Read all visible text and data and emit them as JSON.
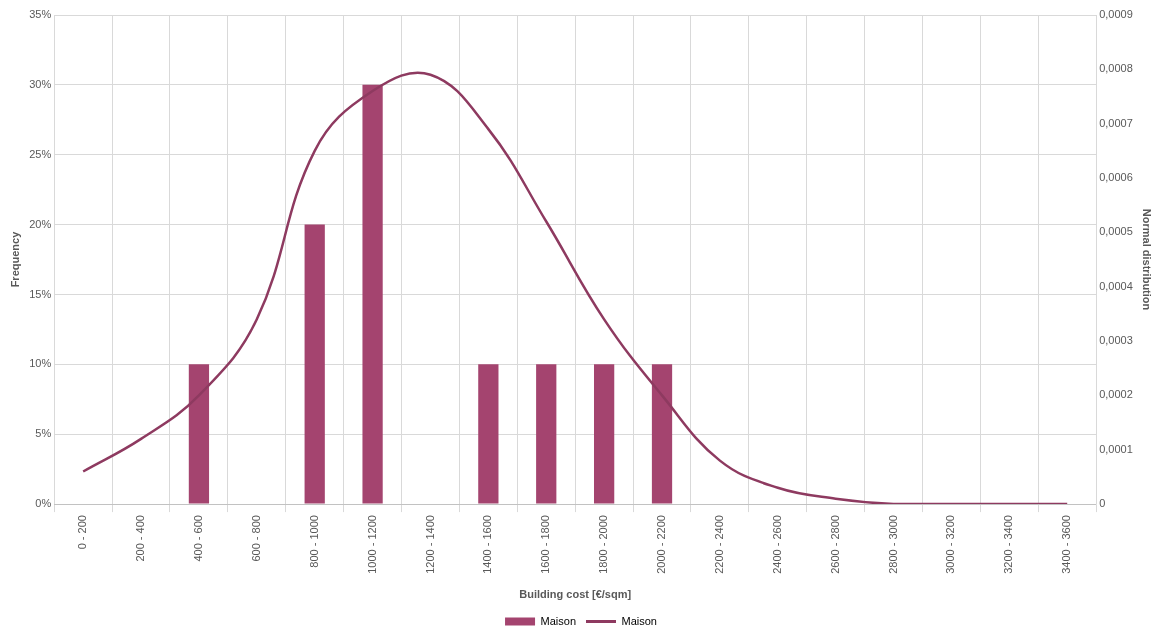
{
  "chart_data": {
    "type": "bar",
    "xlabel": "Building cost [€/sqm]",
    "ylabel": "Frequency",
    "y2label": "Normal distribution",
    "categories": [
      "0 - 200",
      "200 - 400",
      "400 - 600",
      "600 - 800",
      "800 - 1000",
      "1000 - 1200",
      "1200 - 1400",
      "1400 - 1600",
      "1600 - 1800",
      "1800 - 2000",
      "2000 - 2200",
      "2200 - 2400",
      "2400 - 2600",
      "2600 - 2800",
      "2800 - 3000",
      "3000 - 3200",
      "3200 - 3400",
      "3400 - 3600"
    ],
    "series": [
      {
        "name": "Maison",
        "color": "#a4446f",
        "values": [
          0,
          0,
          10,
          0,
          20,
          30,
          0,
          10,
          10,
          10,
          10,
          0,
          0,
          0,
          0,
          0,
          0,
          0
        ]
      },
      {
        "name": "Maison",
        "type": "line",
        "axis": "y2",
        "color": "#8e3a60",
        "values": [
          6e-05,
          0.00012,
          0.0002,
          0.00034,
          0.00065,
          0.00076,
          0.00079,
          0.00069,
          0.00052,
          0.00034,
          0.0002,
          8e-05,
          3e-05,
          1e-05,
          0,
          0,
          0,
          0
        ]
      }
    ],
    "ylim": [
      0,
      35
    ],
    "yticks": [
      {
        "value": 0,
        "label": "0%"
      },
      {
        "value": 5,
        "label": "5%"
      },
      {
        "value": 10,
        "label": "10%"
      },
      {
        "value": 15,
        "label": "15%"
      },
      {
        "value": 20,
        "label": "20%"
      },
      {
        "value": 25,
        "label": "25%"
      },
      {
        "value": 30,
        "label": "30%"
      },
      {
        "value": 35,
        "label": "35%"
      }
    ],
    "y2lim": [
      0,
      0.0009
    ],
    "y2ticks": [
      0,
      {
        "value": 0.0001,
        "label": "0,0001"
      },
      {
        "value": 0.0002,
        "label": "0,0002"
      },
      {
        "value": 0.0003,
        "label": "0,0003"
      },
      {
        "value": 0.0004,
        "label": "0,0004"
      },
      {
        "value": 0.0005,
        "label": "0,0005"
      },
      {
        "value": 0.0006,
        "label": "0,0006"
      },
      {
        "value": 0.0007,
        "label": "0,0007"
      },
      {
        "value": 0.0008,
        "label": "0,0008"
      },
      {
        "value": 0.0009,
        "label": "0,0009"
      }
    ],
    "grid": true,
    "legend": "bottom",
    "marker": "none",
    "line_style": "solid"
  }
}
